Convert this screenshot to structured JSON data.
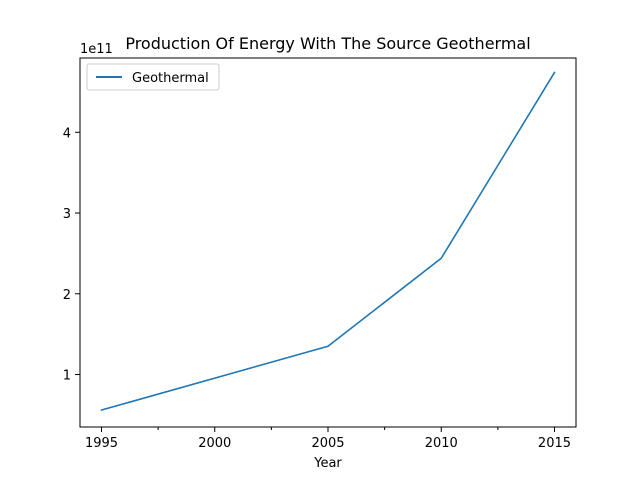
{
  "chart_data": {
    "type": "line",
    "title": "Production Of Energy With The Source Geothermal",
    "xlabel": "Year",
    "ylabel": "",
    "offset_label": "1e11",
    "x": [
      1995,
      2005,
      2010,
      2015
    ],
    "x_ticks": [
      "1995",
      "2000",
      "2005",
      "2010",
      "2015"
    ],
    "x_tick_values": [
      1995,
      2000,
      2005,
      2010,
      2015
    ],
    "x_minor_tick_values": [
      1997.5,
      2002.5,
      2007.5,
      2012.5
    ],
    "y_ticks": [
      "1",
      "2",
      "3",
      "4"
    ],
    "y_tick_values": [
      1,
      2,
      3,
      4
    ],
    "xlim": [
      1994.05,
      2015.95
    ],
    "ylim": [
      0.35,
      4.92
    ],
    "series": [
      {
        "name": "Geothermal",
        "color": "#1f77b4",
        "values": [
          0.56,
          1.35,
          2.44,
          4.74
        ]
      }
    ],
    "legend": {
      "position": "upper-left"
    },
    "grid": false
  }
}
